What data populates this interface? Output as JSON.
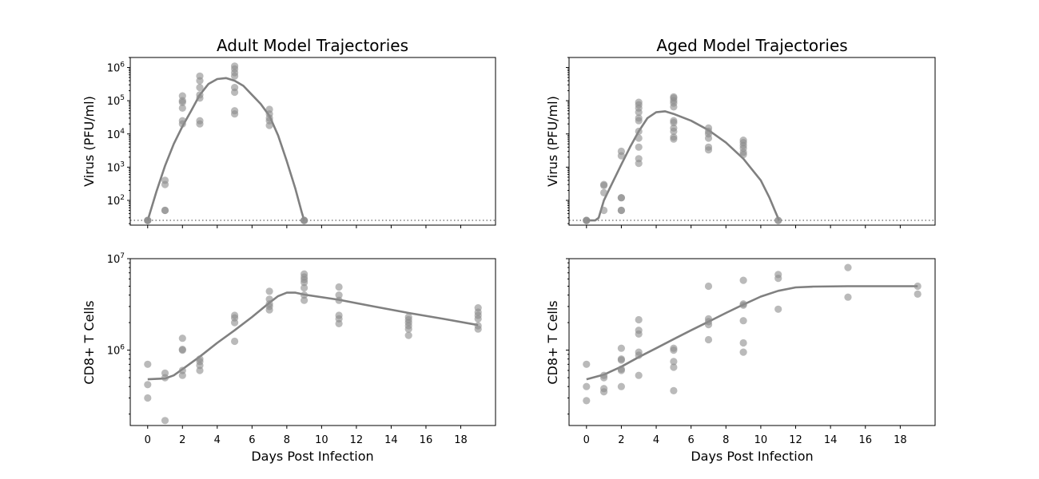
{
  "chart_data": {
    "type": "scatter",
    "shared_xlabel": "Days Post Infection",
    "x_ticks": [
      "0",
      "2",
      "4",
      "6",
      "8",
      "10",
      "12",
      "14",
      "16",
      "18"
    ],
    "xlim": [
      -1,
      20
    ],
    "colors": {
      "points": "#8c8c8c",
      "curve": "#808080",
      "detection_limit": "#7f7f7f"
    },
    "panels": [
      {
        "id": "adult-virus",
        "title": "Adult Model Trajectories",
        "ylabel": "Virus (PFU/ml)",
        "yscale": "log",
        "ylim": [
          18,
          2000000
        ],
        "y_ticks": [
          {
            "value": 100,
            "base": "10",
            "exp": "2"
          },
          {
            "value": 1000,
            "base": "10",
            "exp": "3"
          },
          {
            "value": 10000,
            "base": "10",
            "exp": "4"
          },
          {
            "value": 100000,
            "base": "10",
            "exp": "5"
          },
          {
            "value": 1000000,
            "base": "10",
            "exp": "6"
          }
        ],
        "show_x_ticklabels": false,
        "detection_limit": 25,
        "points": [
          [
            0,
            25
          ],
          [
            0,
            25
          ],
          [
            0,
            25
          ],
          [
            1,
            400
          ],
          [
            1,
            300
          ],
          [
            1,
            50
          ],
          [
            1,
            50
          ],
          [
            2,
            25000
          ],
          [
            2,
            20000
          ],
          [
            2,
            60000
          ],
          [
            2,
            90000
          ],
          [
            2,
            140000
          ],
          [
            2,
            100000
          ],
          [
            3,
            20000
          ],
          [
            3,
            25000
          ],
          [
            3,
            120000
          ],
          [
            3,
            150000
          ],
          [
            3,
            250000
          ],
          [
            3,
            400000
          ],
          [
            3,
            550000
          ],
          [
            5,
            40000
          ],
          [
            5,
            50000
          ],
          [
            5,
            180000
          ],
          [
            5,
            250000
          ],
          [
            5,
            550000
          ],
          [
            5,
            700000
          ],
          [
            5,
            900000
          ],
          [
            5,
            1100000
          ],
          [
            7,
            18000
          ],
          [
            7,
            25000
          ],
          [
            7,
            30000
          ],
          [
            7,
            40000
          ],
          [
            7,
            55000
          ],
          [
            9,
            25
          ],
          [
            9,
            25
          ],
          [
            9,
            25
          ]
        ],
        "curve": [
          [
            0,
            25
          ],
          [
            0.5,
            180
          ],
          [
            1,
            1100
          ],
          [
            1.5,
            5000
          ],
          [
            2,
            17000
          ],
          [
            2.5,
            50000
          ],
          [
            3,
            150000
          ],
          [
            3.5,
            320000
          ],
          [
            4,
            450000
          ],
          [
            4.5,
            480000
          ],
          [
            5,
            400000
          ],
          [
            5.5,
            280000
          ],
          [
            6,
            150000
          ],
          [
            6.5,
            80000
          ],
          [
            7,
            35000
          ],
          [
            7.5,
            9000
          ],
          [
            8,
            1500
          ],
          [
            8.5,
            220
          ],
          [
            8.85,
            45
          ],
          [
            9,
            25
          ]
        ]
      },
      {
        "id": "aged-virus",
        "title": "Aged Model Trajectories",
        "ylabel": "Virus (PFU/ml)",
        "yscale": "log",
        "ylim": [
          18,
          2000000
        ],
        "y_ticks": [],
        "show_x_ticklabels": false,
        "detection_limit": 25,
        "points": [
          [
            0,
            25
          ],
          [
            0,
            25
          ],
          [
            0,
            25
          ],
          [
            1,
            300
          ],
          [
            1,
            280
          ],
          [
            1,
            170
          ],
          [
            1,
            50
          ],
          [
            2,
            120
          ],
          [
            2,
            120
          ],
          [
            2,
            50
          ],
          [
            2,
            50
          ],
          [
            2,
            2200
          ],
          [
            2,
            3000
          ],
          [
            3,
            1300
          ],
          [
            3,
            1800
          ],
          [
            3,
            4000
          ],
          [
            3,
            7500
          ],
          [
            3,
            12000
          ],
          [
            3,
            25000
          ],
          [
            3,
            30000
          ],
          [
            3,
            45000
          ],
          [
            3,
            60000
          ],
          [
            3,
            75000
          ],
          [
            3,
            90000
          ],
          [
            5,
            7000
          ],
          [
            5,
            8000
          ],
          [
            5,
            12000
          ],
          [
            5,
            15000
          ],
          [
            5,
            22000
          ],
          [
            5,
            25000
          ],
          [
            5,
            65000
          ],
          [
            5,
            85000
          ],
          [
            5,
            100000
          ],
          [
            5,
            120000
          ],
          [
            5,
            130000
          ],
          [
            7,
            3300
          ],
          [
            7,
            4000
          ],
          [
            7,
            7500
          ],
          [
            7,
            10000
          ],
          [
            7,
            12000
          ],
          [
            7,
            15000
          ],
          [
            9,
            2400
          ],
          [
            9,
            2800
          ],
          [
            9,
            3700
          ],
          [
            9,
            4500
          ],
          [
            9,
            5500
          ],
          [
            9,
            6500
          ],
          [
            11,
            25
          ],
          [
            11,
            25
          ]
        ],
        "curve": [
          [
            0,
            25
          ],
          [
            0.5,
            25
          ],
          [
            0.7,
            30
          ],
          [
            1,
            100
          ],
          [
            1.5,
            350
          ],
          [
            2,
            1200
          ],
          [
            2.5,
            4000
          ],
          [
            3,
            12000
          ],
          [
            3.5,
            30000
          ],
          [
            4,
            45000
          ],
          [
            4.5,
            48000
          ],
          [
            5,
            40000
          ],
          [
            6,
            25000
          ],
          [
            7,
            13000
          ],
          [
            8,
            5500
          ],
          [
            9,
            1800
          ],
          [
            10,
            400
          ],
          [
            10.5,
            120
          ],
          [
            10.8,
            50
          ],
          [
            11.05,
            25
          ]
        ]
      },
      {
        "id": "adult-cd8",
        "title": "",
        "ylabel": "CD8+ T Cells",
        "yscale": "log",
        "ylim": [
          150000,
          10000000
        ],
        "y_ticks": [
          {
            "value": 1000000,
            "base": "10",
            "exp": "6"
          },
          {
            "value": 10000000,
            "base": "10",
            "exp": "7"
          }
        ],
        "show_x_ticklabels": true,
        "points": [
          [
            0,
            700000
          ],
          [
            0,
            420000
          ],
          [
            0,
            300000
          ],
          [
            1,
            560000
          ],
          [
            1,
            500000
          ],
          [
            1,
            170000
          ],
          [
            2,
            1350000
          ],
          [
            2,
            1020000
          ],
          [
            2,
            1000000
          ],
          [
            2,
            600000
          ],
          [
            2,
            530000
          ],
          [
            3,
            800000
          ],
          [
            3,
            750000
          ],
          [
            3,
            680000
          ],
          [
            3,
            600000
          ],
          [
            5,
            2400000
          ],
          [
            5,
            2250000
          ],
          [
            5,
            2000000
          ],
          [
            5,
            1250000
          ],
          [
            7,
            4400000
          ],
          [
            7,
            3600000
          ],
          [
            7,
            3200000
          ],
          [
            7,
            3000000
          ],
          [
            7,
            2750000
          ],
          [
            9,
            6800000
          ],
          [
            9,
            6300000
          ],
          [
            9,
            5900000
          ],
          [
            9,
            5500000
          ],
          [
            9,
            4800000
          ],
          [
            9,
            4000000
          ],
          [
            9,
            3500000
          ],
          [
            11,
            4900000
          ],
          [
            11,
            4000000
          ],
          [
            11,
            3500000
          ],
          [
            11,
            2400000
          ],
          [
            11,
            2200000
          ],
          [
            11,
            1950000
          ],
          [
            15,
            2300000
          ],
          [
            15,
            2150000
          ],
          [
            15,
            2000000
          ],
          [
            15,
            1850000
          ],
          [
            15,
            1700000
          ],
          [
            15,
            1450000
          ],
          [
            19,
            2900000
          ],
          [
            19,
            2600000
          ],
          [
            19,
            2400000
          ],
          [
            19,
            2200000
          ],
          [
            19,
            1850000
          ],
          [
            19,
            1700000
          ]
        ],
        "curve": [
          [
            0,
            480000
          ],
          [
            1,
            490000
          ],
          [
            1.5,
            530000
          ],
          [
            2,
            620000
          ],
          [
            3,
            850000
          ],
          [
            4,
            1200000
          ],
          [
            5,
            1650000
          ],
          [
            6,
            2300000
          ],
          [
            7,
            3300000
          ],
          [
            7.5,
            3900000
          ],
          [
            8,
            4250000
          ],
          [
            8.5,
            4250000
          ],
          [
            9,
            4050000
          ],
          [
            11,
            3550000
          ],
          [
            13,
            3000000
          ],
          [
            15,
            2550000
          ],
          [
            17,
            2200000
          ],
          [
            19,
            1880000
          ]
        ]
      },
      {
        "id": "aged-cd8",
        "title": "",
        "ylabel": "CD8+ T Cells",
        "yscale": "log",
        "ylim": [
          150000,
          10000000
        ],
        "y_ticks": [],
        "show_x_ticklabels": true,
        "points": [
          [
            0,
            700000
          ],
          [
            0,
            400000
          ],
          [
            0,
            280000
          ],
          [
            1,
            530000
          ],
          [
            1,
            500000
          ],
          [
            1,
            380000
          ],
          [
            1,
            350000
          ],
          [
            2,
            1050000
          ],
          [
            2,
            800000
          ],
          [
            2,
            780000
          ],
          [
            2,
            620000
          ],
          [
            2,
            600000
          ],
          [
            2,
            400000
          ],
          [
            3,
            2150000
          ],
          [
            3,
            1650000
          ],
          [
            3,
            1500000
          ],
          [
            3,
            950000
          ],
          [
            3,
            880000
          ],
          [
            3,
            530000
          ],
          [
            5,
            1050000
          ],
          [
            5,
            1000000
          ],
          [
            5,
            750000
          ],
          [
            5,
            650000
          ],
          [
            5,
            360000
          ],
          [
            7,
            5000000
          ],
          [
            7,
            2200000
          ],
          [
            7,
            2050000
          ],
          [
            7,
            1900000
          ],
          [
            7,
            1300000
          ],
          [
            9,
            5800000
          ],
          [
            9,
            3200000
          ],
          [
            9,
            3100000
          ],
          [
            9,
            2100000
          ],
          [
            9,
            1200000
          ],
          [
            9,
            950000
          ],
          [
            11,
            6700000
          ],
          [
            11,
            6100000
          ],
          [
            11,
            2800000
          ],
          [
            15,
            8000000
          ],
          [
            15,
            3800000
          ],
          [
            19,
            5000000
          ],
          [
            19,
            4100000
          ]
        ],
        "curve": [
          [
            0,
            480000
          ],
          [
            1,
            540000
          ],
          [
            2,
            660000
          ],
          [
            3,
            840000
          ],
          [
            4,
            1050000
          ],
          [
            5,
            1320000
          ],
          [
            6,
            1650000
          ],
          [
            7,
            2050000
          ],
          [
            8,
            2550000
          ],
          [
            9,
            3150000
          ],
          [
            10,
            3850000
          ],
          [
            11,
            4450000
          ],
          [
            12,
            4850000
          ],
          [
            13,
            4950000
          ],
          [
            15,
            5000000
          ],
          [
            17,
            5000000
          ],
          [
            19,
            5000000
          ]
        ]
      }
    ]
  }
}
